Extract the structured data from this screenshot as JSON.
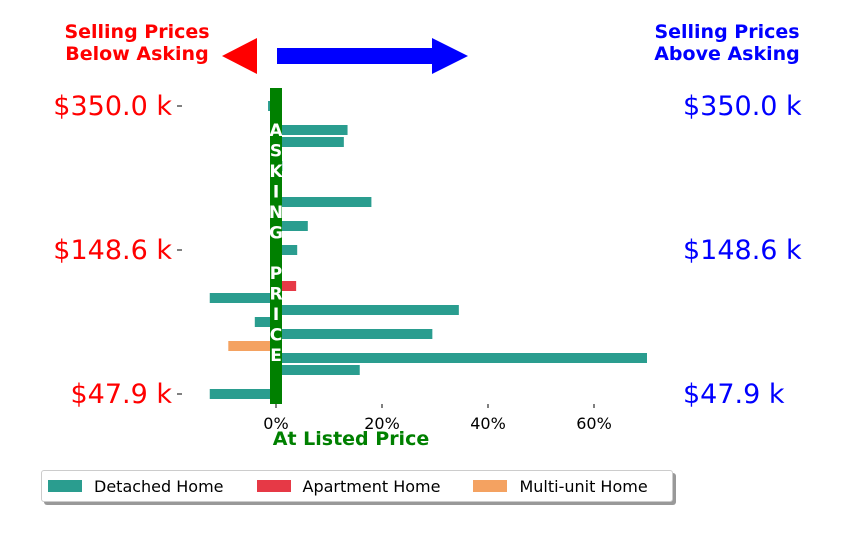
{
  "chart_data": {
    "type": "bar",
    "orientation": "horizontal",
    "header_left": "Selling Prices\nBelow Asking",
    "header_right": "Selling Prices\nAbove Asking",
    "center_label": "ASKING PRICE",
    "xlabel": "At Listed Price",
    "x_ticks": [
      "0%",
      "20%",
      "40%",
      "60%"
    ],
    "x_tick_values": [
      0,
      20,
      40,
      60
    ],
    "xlim": [
      -14,
      72
    ],
    "y_tick_labels": [
      "$350.0 k",
      "$148.6 k",
      "$47.9 k"
    ],
    "y_tick_rows": [
      0,
      6,
      12
    ],
    "rows": 13,
    "bars": [
      {
        "row": 0,
        "series": "Detached Home",
        "value": -1.5,
        "slot": 0
      },
      {
        "row": 1,
        "series": "Detached Home",
        "value": 13.5,
        "slot": 0
      },
      {
        "row": 1,
        "series": "Detached Home",
        "value": 12.8,
        "slot": 1
      },
      {
        "row": 2,
        "series": "Detached Home",
        "value": 0.5,
        "slot": 0
      },
      {
        "row": 2,
        "series": "Detached Home",
        "value": 1.2,
        "slot": 1
      },
      {
        "row": 4,
        "series": "Detached Home",
        "value": 18,
        "slot": 0
      },
      {
        "row": 5,
        "series": "Detached Home",
        "value": 6,
        "slot": 0
      },
      {
        "row": 6,
        "series": "Detached Home",
        "value": 4,
        "slot": 0
      },
      {
        "row": 7,
        "series": "Detached Home",
        "value": 1,
        "slot": 0
      },
      {
        "row": 7,
        "series": "Apartment Home",
        "value": 3.8,
        "slot": 1
      },
      {
        "row": 8,
        "series": "Detached Home",
        "value": -12.5,
        "slot": 0
      },
      {
        "row": 8,
        "series": "Detached Home",
        "value": 34.5,
        "slot": 1
      },
      {
        "row": 9,
        "series": "Detached Home",
        "value": -4,
        "slot": 0
      },
      {
        "row": 9,
        "series": "Detached Home",
        "value": 29.5,
        "slot": 1
      },
      {
        "row": 10,
        "series": "Multi-unit Home",
        "value": -9,
        "slot": 0
      },
      {
        "row": 10,
        "series": "Detached Home",
        "value": 70,
        "slot": 1
      },
      {
        "row": 11,
        "series": "Detached Home",
        "value": 15.8,
        "slot": 0
      },
      {
        "row": 12,
        "series": "Detached Home",
        "value": -12.5,
        "slot": 0
      }
    ],
    "series": [
      {
        "name": "Detached Home",
        "color": "#2a9d8f"
      },
      {
        "name": "Apartment Home",
        "color": "#e63946"
      },
      {
        "name": "Multi-unit Home",
        "color": "#f4a261"
      }
    ],
    "colors": {
      "left": "#ff0000",
      "right": "#0000ff",
      "center": "#008000"
    },
    "legend_position": "bottom"
  }
}
